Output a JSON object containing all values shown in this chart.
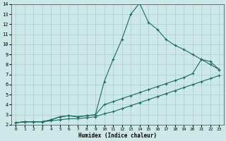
{
  "xlabel": "Humidex (Indice chaleur)",
  "background_color": "#cde8e8",
  "grid_color": "#a8cccc",
  "line_color": "#1a6b5a",
  "xlim": [
    -0.5,
    23.5
  ],
  "ylim": [
    2,
    14
  ],
  "xticks": [
    0,
    1,
    2,
    3,
    4,
    5,
    6,
    7,
    8,
    9,
    10,
    11,
    12,
    13,
    14,
    15,
    16,
    17,
    18,
    19,
    20,
    21,
    22,
    23
  ],
  "yticks": [
    2,
    3,
    4,
    5,
    6,
    7,
    8,
    9,
    10,
    11,
    12,
    13,
    14
  ],
  "line1_x": [
    0,
    1,
    2,
    3,
    4,
    5,
    6,
    7,
    8,
    9,
    10,
    11,
    12,
    13,
    14,
    15,
    16,
    17,
    18,
    19,
    20,
    21,
    22,
    23
  ],
  "line1_y": [
    2.2,
    2.3,
    2.3,
    2.3,
    2.4,
    2.5,
    2.6,
    2.6,
    2.7,
    2.8,
    3.1,
    3.3,
    3.6,
    3.9,
    4.2,
    4.5,
    4.8,
    5.1,
    5.4,
    5.7,
    6.0,
    6.3,
    6.6,
    6.9
  ],
  "line2_x": [
    0,
    1,
    2,
    3,
    4,
    5,
    6,
    7,
    8,
    9,
    10,
    11,
    12,
    13,
    14,
    15,
    16,
    17,
    18,
    19,
    20,
    21,
    22,
    23
  ],
  "line2_y": [
    2.2,
    2.3,
    2.3,
    2.3,
    2.5,
    2.8,
    2.9,
    2.8,
    2.9,
    3.0,
    6.3,
    8.5,
    10.5,
    13.0,
    14.1,
    12.2,
    11.5,
    10.5,
    9.9,
    9.5,
    9.0,
    8.5,
    8.0,
    7.5
  ],
  "line3_x": [
    0,
    1,
    2,
    3,
    4,
    5,
    6,
    7,
    8,
    9,
    10,
    11,
    12,
    13,
    14,
    15,
    16,
    17,
    18,
    19,
    20,
    21,
    22,
    23
  ],
  "line3_y": [
    2.2,
    2.3,
    2.3,
    2.3,
    2.5,
    2.8,
    2.9,
    2.8,
    2.9,
    3.0,
    4.0,
    4.3,
    4.6,
    4.9,
    5.2,
    5.5,
    5.8,
    6.1,
    6.4,
    6.7,
    7.1,
    8.5,
    8.3,
    7.5
  ]
}
